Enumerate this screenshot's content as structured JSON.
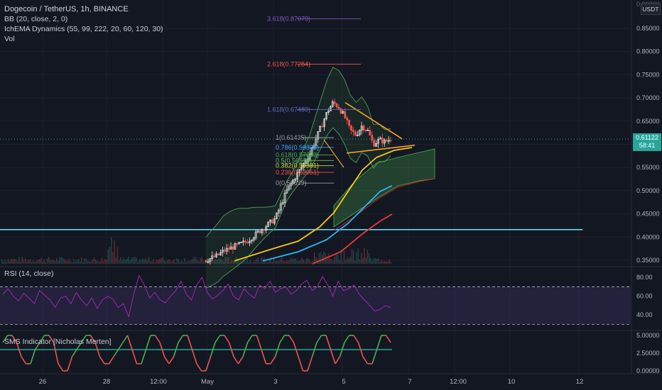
{
  "header": {
    "symbol_title": "Dogecoin / TetherUS, 1h, BINANCE",
    "indicators": [
      "BB (20, close, 2, 0)",
      "IchEMA Dynamics (55, 99, 222, 20, 60, 120, 30)",
      "Vol"
    ]
  },
  "price_axis": {
    "quote_currency": "USDT",
    "current_price": "0.61122",
    "countdown": "58:41",
    "top_partial_label": "0.90000"
  },
  "colors": {
    "background": "#131722",
    "up": "#26a69a",
    "down": "#ef5350",
    "support_line": "#5ad8f5",
    "triangle": "#f5a623",
    "rsi": "#9c27b0",
    "sms_bull": "#4caf50",
    "sms_bear": "#ef5350",
    "sms_mid": "#26a69a"
  },
  "rsi_pane": {
    "title": "RSI (14, close)",
    "ticks": [
      "80.00",
      "60.00",
      "40.00"
    ],
    "upper_band": 70,
    "lower_band": 30
  },
  "sms_pane": {
    "title": "SMS Indicator [Nicholas Merten]",
    "ticks": [
      "5.00000",
      "2.50000",
      "0.00000"
    ],
    "mid_level": 3
  },
  "time_axis": {
    "labels": [
      "26",
      "28",
      "12:00",
      "May",
      "3",
      "5",
      "7",
      "12:00",
      "10",
      "12"
    ]
  },
  "chart_data": [
    {
      "type": "candlestick",
      "title": "Dogecoin / TetherUS, 1h, BINANCE",
      "ylim": [
        0.34,
        0.9
      ],
      "y_ticks": [
        0.35,
        0.4,
        0.45,
        0.5,
        0.55,
        0.6,
        0.65,
        0.7,
        0.75,
        0.8,
        0.85
      ],
      "support_level": 0.416,
      "fibonacci": [
        {
          "label": "3.618(0.87079)",
          "value": 0.87079
        },
        {
          "label": "2.618(0.77284)",
          "value": 0.77284
        },
        {
          "label": "1.618(0.67489)",
          "value": 0.67489
        },
        {
          "label": "1(0.61435)",
          "value": 0.61435
        },
        {
          "label": "0.786(0.59338)",
          "value": 0.59338
        },
        {
          "label": "0.618(0.57693)",
          "value": 0.57693
        },
        {
          "label": "0.5(0.56516)",
          "value": 0.56516
        },
        {
          "label": "0.382(0.55381)",
          "value": 0.55381
        },
        {
          "label": "0.236(0.53951)",
          "value": 0.53951
        },
        {
          "label": "0(0.51639)",
          "value": 0.51639
        }
      ],
      "close_path": [
        0.35,
        0.355,
        0.36,
        0.37,
        0.375,
        0.38,
        0.385,
        0.39,
        0.4,
        0.41,
        0.42,
        0.43,
        0.44,
        0.47,
        0.5,
        0.52,
        0.54,
        0.56,
        0.58,
        0.61,
        0.64,
        0.67,
        0.69,
        0.68,
        0.66,
        0.63,
        0.62,
        0.64,
        0.63,
        0.6,
        0.61,
        0.605,
        0.612
      ]
    },
    {
      "type": "line",
      "title": "RSI (14, close)",
      "ylim": [
        25,
        90
      ],
      "values": [
        62,
        68,
        60,
        55,
        63,
        58,
        52,
        66,
        61,
        56,
        48,
        58,
        60,
        52,
        64,
        56,
        50,
        58,
        47,
        56,
        60,
        57,
        48,
        52,
        38,
        63,
        82,
        72,
        58,
        64,
        56,
        53,
        60,
        66,
        76,
        62,
        56,
        72,
        80,
        64,
        57,
        61,
        66,
        73,
        60,
        56,
        68,
        62,
        58,
        72,
        68,
        76,
        64,
        68,
        70,
        62,
        66,
        73,
        77,
        66,
        70,
        81,
        72,
        60,
        76,
        66,
        68,
        72,
        62,
        56,
        50,
        44,
        46,
        50,
        48
      ]
    },
    {
      "type": "line",
      "title": "SMS Indicator [Nicholas Merten]",
      "ylim": [
        0,
        5
      ],
      "values": [
        4,
        5,
        5,
        4,
        2,
        1,
        1,
        3,
        4,
        5,
        5,
        4,
        1,
        0,
        0,
        2,
        3,
        4,
        5,
        5,
        4,
        2,
        1,
        1,
        2,
        3,
        4,
        5,
        3,
        1,
        1,
        3,
        5,
        5,
        4,
        2,
        1,
        2,
        4,
        5,
        5,
        3,
        1,
        0,
        0,
        2,
        4,
        5,
        5,
        4,
        2,
        1,
        2,
        4,
        5,
        5,
        3,
        1,
        1,
        2,
        4,
        5,
        5,
        4,
        2,
        0,
        0,
        2,
        4,
        5,
        5,
        3,
        1,
        2,
        4,
        5,
        5,
        4,
        2,
        1,
        1,
        3,
        5,
        5,
        4
      ]
    }
  ]
}
